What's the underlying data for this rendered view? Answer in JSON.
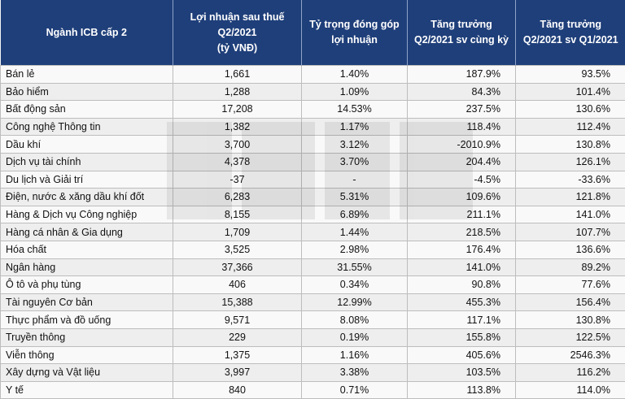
{
  "headers": {
    "sector": "Ngành ICB cấp 2",
    "profit": [
      "Lợi nhuận sau thuế",
      "Q2/2021",
      "(tỷ VNĐ)"
    ],
    "share": [
      "Tỷ trọng đóng góp",
      "lợi nhuận"
    ],
    "yoy": [
      "Tăng trưởng",
      "Q2/2021 sv cùng kỳ"
    ],
    "qoq": [
      "Tăng trưởng",
      "Q2/2021 sv Q1/2021"
    ]
  },
  "rows": [
    {
      "name": "Bán lẻ",
      "profit": "1,661",
      "share": "1.40%",
      "yoy": "187.9%",
      "qoq": "93.5%"
    },
    {
      "name": "Bảo hiểm",
      "profit": "1,288",
      "share": "1.09%",
      "yoy": "84.3%",
      "qoq": "101.4%"
    },
    {
      "name": "Bất động sản",
      "profit": "17,208",
      "share": "14.53%",
      "yoy": "237.5%",
      "qoq": "130.6%"
    },
    {
      "name": "Công nghệ Thông tin",
      "profit": "1,382",
      "share": "1.17%",
      "yoy": "118.4%",
      "qoq": "112.4%"
    },
    {
      "name": "Dầu khí",
      "profit": "3,700",
      "share": "3.12%",
      "yoy": "-2010.9%",
      "qoq": "130.8%"
    },
    {
      "name": "Dịch vụ tài chính",
      "profit": "4,378",
      "share": "3.70%",
      "yoy": "204.4%",
      "qoq": "126.1%"
    },
    {
      "name": "Du lịch và Giải trí",
      "profit": "-37",
      "share": "-",
      "yoy": "-4.5%",
      "qoq": "-33.6%"
    },
    {
      "name": "Điện, nước & xăng dầu khí đốt",
      "profit": "6,283",
      "share": "5.31%",
      "yoy": "109.6%",
      "qoq": "121.8%"
    },
    {
      "name": "Hàng & Dịch vụ Công nghiệp",
      "profit": "8,155",
      "share": "6.89%",
      "yoy": "211.1%",
      "qoq": "141.0%"
    },
    {
      "name": "Hàng cá nhân & Gia dụng",
      "profit": "1,709",
      "share": "1.44%",
      "yoy": "218.5%",
      "qoq": "107.7%"
    },
    {
      "name": "Hóa chất",
      "profit": "3,525",
      "share": "2.98%",
      "yoy": "176.4%",
      "qoq": "136.6%"
    },
    {
      "name": "Ngân hàng",
      "profit": "37,366",
      "share": "31.55%",
      "yoy": "141.0%",
      "qoq": "89.2%"
    },
    {
      "name": "Ô tô và phụ tùng",
      "profit": "406",
      "share": "0.34%",
      "yoy": "90.8%",
      "qoq": "77.6%"
    },
    {
      "name": "Tài nguyên Cơ bản",
      "profit": "15,388",
      "share": "12.99%",
      "yoy": "455.3%",
      "qoq": "156.4%"
    },
    {
      "name": "Thực phẩm và đồ uống",
      "profit": "9,571",
      "share": "8.08%",
      "yoy": "117.1%",
      "qoq": "130.8%"
    },
    {
      "name": "Truyền thông",
      "profit": "229",
      "share": "0.19%",
      "yoy": "155.8%",
      "qoq": "122.5%"
    },
    {
      "name": "Viễn thông",
      "profit": "1,375",
      "share": "1.16%",
      "yoy": "405.6%",
      "qoq": "2546.3%"
    },
    {
      "name": "Xây dựng và Vật liệu",
      "profit": "3,997",
      "share": "3.38%",
      "yoy": "103.5%",
      "qoq": "116.2%"
    },
    {
      "name": "Y tế",
      "profit": "840",
      "share": "0.71%",
      "yoy": "113.8%",
      "qoq": "114.0%"
    }
  ]
}
